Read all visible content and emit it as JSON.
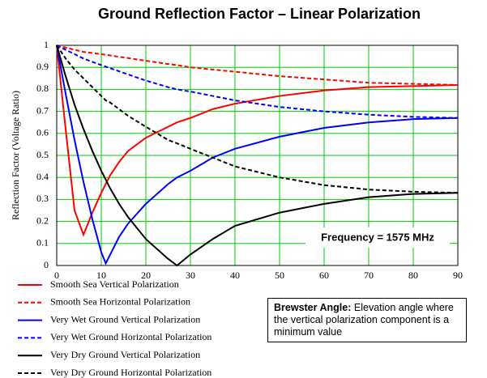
{
  "chart_data": {
    "type": "line",
    "title": "Ground Reflection Factor – Linear Polarization",
    "y_label": "Reflection Factor (Voltage Ratio)",
    "x": [
      0,
      2,
      4,
      6,
      8,
      10,
      11,
      12,
      14,
      16,
      20,
      25,
      27,
      30,
      35,
      40,
      50,
      60,
      70,
      80,
      90
    ],
    "series": [
      {
        "name": "Smooth Sea Vertical Polarization",
        "color": "#ff0000",
        "dashed": false,
        "values": [
          1.0,
          0.62,
          0.25,
          0.14,
          0.24,
          0.33,
          0.37,
          0.41,
          0.47,
          0.52,
          0.58,
          0.63,
          0.65,
          0.67,
          0.71,
          0.735,
          0.77,
          0.795,
          0.81,
          0.815,
          0.82
        ]
      },
      {
        "name": "Smooth Sea Horizontal Polarization",
        "color": "#ff0000",
        "dashed": true,
        "values": [
          1.0,
          0.99,
          0.98,
          0.97,
          0.965,
          0.96,
          0.957,
          0.954,
          0.948,
          0.942,
          0.93,
          0.915,
          0.91,
          0.9,
          0.89,
          0.88,
          0.86,
          0.845,
          0.83,
          0.825,
          0.82
        ]
      },
      {
        "name": "Very Wet Ground Vertical Polarization",
        "color": "#0000ff",
        "dashed": false,
        "values": [
          1.0,
          0.78,
          0.57,
          0.38,
          0.21,
          0.06,
          0.01,
          0.05,
          0.13,
          0.19,
          0.28,
          0.37,
          0.4,
          0.43,
          0.49,
          0.53,
          0.585,
          0.625,
          0.65,
          0.665,
          0.67
        ]
      },
      {
        "name": "Very Wet Ground Horizontal Polarization",
        "color": "#0000ff",
        "dashed": true,
        "values": [
          1.0,
          0.98,
          0.96,
          0.94,
          0.925,
          0.91,
          0.903,
          0.896,
          0.882,
          0.868,
          0.84,
          0.81,
          0.8,
          0.79,
          0.77,
          0.75,
          0.72,
          0.7,
          0.685,
          0.675,
          0.67
        ]
      },
      {
        "name": "Very Dry Ground Vertical Polarization",
        "color": "#000000",
        "dashed": false,
        "values": [
          1.0,
          0.86,
          0.73,
          0.62,
          0.52,
          0.43,
          0.39,
          0.35,
          0.28,
          0.22,
          0.12,
          0.03,
          0.0,
          0.05,
          0.12,
          0.18,
          0.24,
          0.28,
          0.31,
          0.325,
          0.33
        ]
      },
      {
        "name": "Very Dry Ground Horizontal Polarization",
        "color": "#000000",
        "dashed": true,
        "values": [
          1.0,
          0.94,
          0.89,
          0.85,
          0.81,
          0.77,
          0.75,
          0.74,
          0.71,
          0.68,
          0.63,
          0.57,
          0.555,
          0.53,
          0.49,
          0.45,
          0.4,
          0.365,
          0.345,
          0.335,
          0.33
        ]
      }
    ],
    "xlim": [
      0,
      90
    ],
    "xticks": [
      0,
      10,
      20,
      30,
      40,
      50,
      60,
      70,
      80,
      90
    ],
    "ylim": [
      0,
      1
    ],
    "yticks": [
      0,
      0.1,
      0.2,
      0.3,
      0.4,
      0.5,
      0.6,
      0.7,
      0.8,
      0.9,
      1
    ],
    "grid": true,
    "grid_color": "#00cc00",
    "annotations": [
      {
        "text": "Frequency = 1575 MHz"
      },
      {
        "label": "Brewster Angle:",
        "text": "Elevation angle where the vertical polarization component is a minimum value"
      }
    ]
  }
}
